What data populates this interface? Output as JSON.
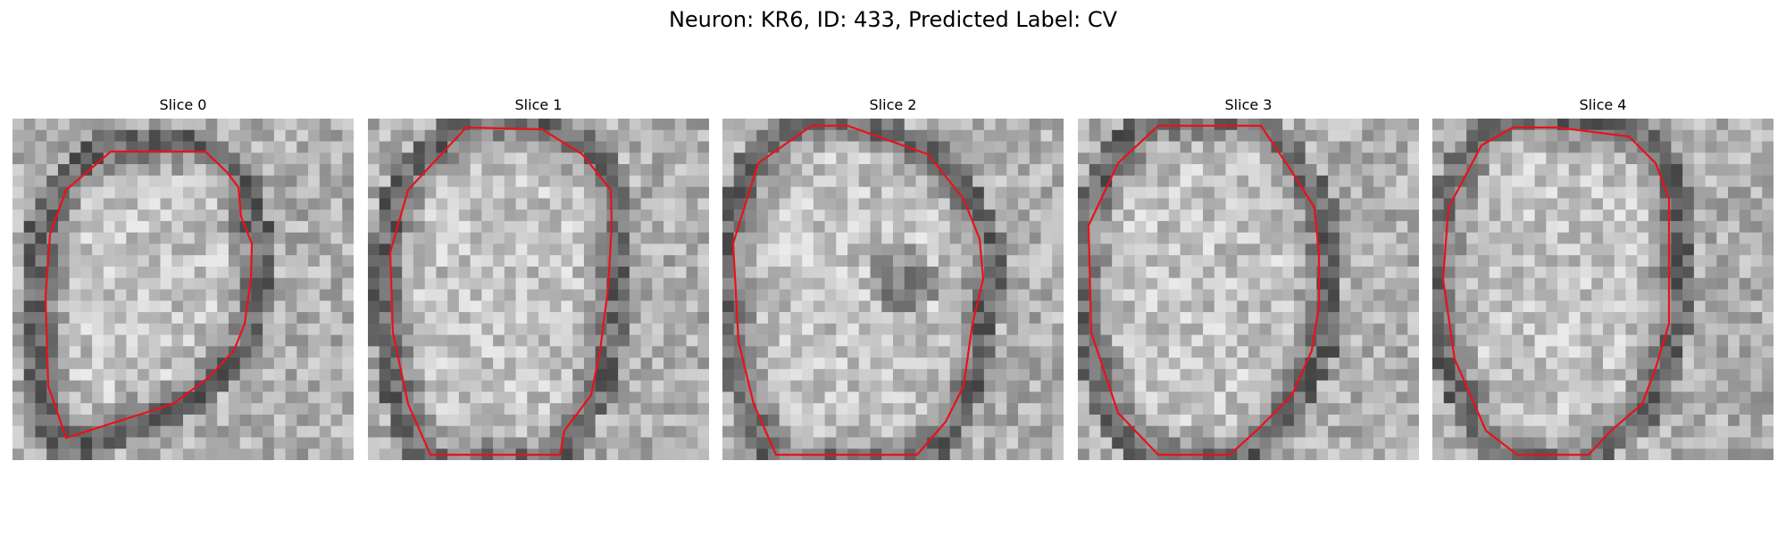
{
  "figure": {
    "title": "Neuron: KR6, ID: 433, Predicted Label: CV",
    "contour_color": "#e8121a",
    "colormap": "gray",
    "panels": [
      {
        "title": "Slice 0"
      },
      {
        "title": "Slice 1"
      },
      {
        "title": "Slice 2"
      },
      {
        "title": "Slice 3"
      },
      {
        "title": "Slice 4"
      }
    ]
  }
}
